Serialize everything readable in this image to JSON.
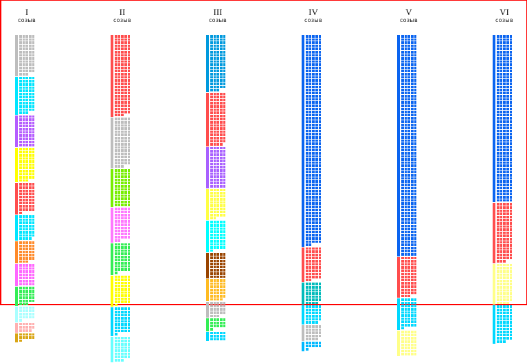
{
  "columns": [
    {
      "numeral": "I",
      "label": "созыв",
      "segments": [
        {
          "color": "#bdbdbd",
          "seats": 63
        },
        {
          "color": "#00e5ff",
          "seats": 58
        },
        {
          "color": "#b45cff",
          "seats": 50
        },
        {
          "color": "#ffff00",
          "seats": 53
        },
        {
          "color": "#ff4d4d",
          "seats": 46
        },
        {
          "color": "#00e5ff",
          "seats": 39
        },
        {
          "color": "#ff8a2a",
          "seats": 33
        },
        {
          "color": "#ff66ff",
          "seats": 35
        },
        {
          "color": "#33ee55",
          "seats": 28
        },
        {
          "color": "#aaffff",
          "seats": 21
        },
        {
          "color": "#ffb0b0",
          "seats": 14
        },
        {
          "color": "#d9a514",
          "seats": 11
        }
      ]
    },
    {
      "numeral": "II",
      "label": "созыв",
      "segments": [
        {
          "color": "#ff4d4d",
          "seats": 128
        },
        {
          "color": "#bdbdbd",
          "seats": 78
        },
        {
          "color": "#77ee00",
          "seats": 60
        },
        {
          "color": "#ff77ff",
          "seats": 52
        },
        {
          "color": "#33ee55",
          "seats": 46
        },
        {
          "color": "#ffff00",
          "seats": 46
        },
        {
          "color": "#00d8ff",
          "seats": 41
        },
        {
          "color": "#66ffff",
          "seats": 38
        }
      ]
    },
    {
      "numeral": "III",
      "label": "созыв",
      "segments": [
        {
          "color": "#0099dd",
          "seats": 88
        },
        {
          "color": "#ff4d4d",
          "seats": 84
        },
        {
          "color": "#a860ff",
          "seats": 65
        },
        {
          "color": "#ffff44",
          "seats": 47
        },
        {
          "color": "#00ffff",
          "seats": 46
        },
        {
          "color": "#994400",
          "seats": 40
        },
        {
          "color": "#ffbb22",
          "seats": 34
        },
        {
          "color": "#bdbdbd",
          "seats": 23
        },
        {
          "color": "#33ee55",
          "seats": 16
        },
        {
          "color": "#00d8ff",
          "seats": 15
        }
      ]
    },
    {
      "numeral": "IV",
      "label": "созыв",
      "segments": [
        {
          "color": "#0a64f0",
          "seats": 332
        },
        {
          "color": "#ff4d4d",
          "seats": 52
        },
        {
          "color": "#00bbbb",
          "seats": 34
        },
        {
          "color": "#00d8ff",
          "seats": 29
        },
        {
          "color": "#bdbdbd",
          "seats": 24
        },
        {
          "color": "#00b8ff",
          "seats": 11
        }
      ]
    },
    {
      "numeral": "V",
      "label": "созыв",
      "segments": [
        {
          "color": "#0a64f0",
          "seats": 350
        },
        {
          "color": "#ff4d4d",
          "seats": 63
        },
        {
          "color": "#00d8ff",
          "seats": 46
        },
        {
          "color": "#ffff88",
          "seats": 40
        }
      ]
    },
    {
      "numeral": "VI",
      "label": "созыв",
      "segments": [
        {
          "color": "#0a64f0",
          "seats": 265
        },
        {
          "color": "#ff4d4d",
          "seats": 93
        },
        {
          "color": "#ffff88",
          "seats": 64
        },
        {
          "color": "#00d8ff",
          "seats": 58
        }
      ]
    }
  ]
}
